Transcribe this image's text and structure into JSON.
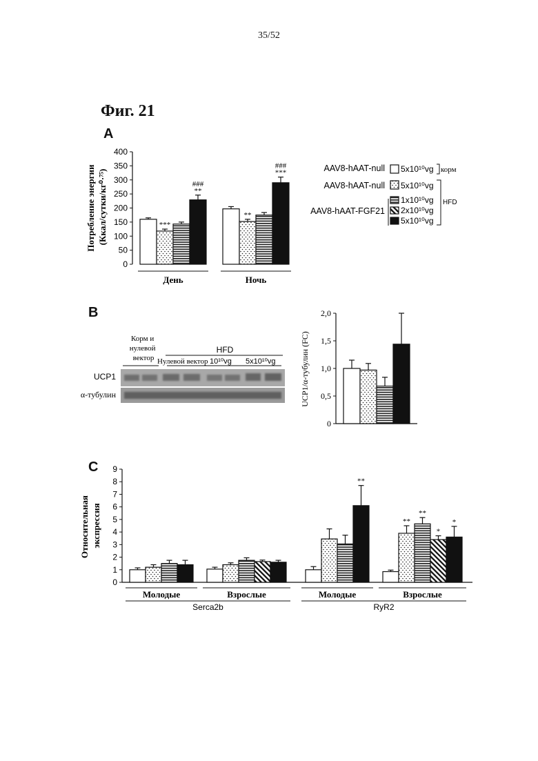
{
  "page_number": "35/52",
  "figure_title": "Фиг. 21",
  "legend": {
    "rows": [
      {
        "group_label": "AAV8-hAAT-null",
        "dose": "5x10¹⁰vg",
        "pattern": "white"
      },
      {
        "group_label": "AAV8-hAAT-null",
        "dose": "5x10¹⁰vg",
        "pattern": "dots"
      },
      {
        "group_label": "",
        "dose": "1x10¹⁰vg",
        "pattern": "hlines"
      },
      {
        "group_label": "AAV8-hAAT-FGF21",
        "dose": "2x10¹⁰vg",
        "pattern": "diag"
      },
      {
        "group_label": "",
        "dose": "5x10¹⁰vg",
        "pattern": "black"
      }
    ],
    "bracket_chow": "корм",
    "bracket_hfd": "HFD"
  },
  "blot": {
    "header_chow": "Корм и нулевой вектор",
    "header_chow_lines": [
      "Корм и",
      "нулевой",
      "вектор"
    ],
    "header_hfd": "HFD",
    "lane_null": "Нулевой вектор",
    "lane_1e10": "10¹⁰vg",
    "lane_5e10": "5x10¹⁰vg",
    "row_ucp1": "UCP1",
    "row_tubulin": "α-тубулин"
  },
  "chart_data": [
    {
      "panel": "A",
      "type": "bar",
      "ylabel": "Потребление энергии (Ккал/сутки/кг⁰·⁷⁵)",
      "ylabel_lines": [
        "Потребление энергии",
        "(Ккал/сутки/кг⁰·⁷⁵)"
      ],
      "ylim": [
        0,
        400
      ],
      "yticks": [
        "0",
        "50",
        "100",
        "150",
        "200",
        "250",
        "300",
        "350",
        "400"
      ],
      "categories": [
        "День",
        "Ночь"
      ],
      "series": [
        {
          "values": [
            160,
            197
          ],
          "errors": [
            5,
            8
          ]
        },
        {
          "values": [
            118,
            152
          ],
          "errors": [
            7,
            8
          ]
        },
        {
          "values": [
            143,
            175
          ],
          "errors": [
            7,
            9
          ]
        },
        {
          "values": [
            229,
            290
          ],
          "errors": [
            17,
            20
          ]
        }
      ],
      "series_patterns": [
        "white",
        "dots",
        "hlines",
        "black"
      ],
      "annotations": [
        {
          "category": 0,
          "series": 1,
          "lines": [
            "***"
          ]
        },
        {
          "category": 0,
          "series": 3,
          "lines": [
            "###",
            "**"
          ]
        },
        {
          "category": 1,
          "series": 1,
          "lines": [
            "**"
          ]
        },
        {
          "category": 1,
          "series": 3,
          "lines": [
            "###",
            "***"
          ]
        }
      ]
    },
    {
      "panel": "B",
      "type": "bar",
      "ylabel": "UCP1/α-тубулин (FC)",
      "ylim": [
        0,
        2
      ],
      "yticks": [
        "0",
        "0,5",
        "1,0",
        "1,5",
        "2,0"
      ],
      "values": [
        1.0,
        0.97,
        0.68,
        1.44
      ],
      "errors": [
        0.15,
        0.12,
        0.16,
        0.56
      ],
      "series_patterns": [
        "white",
        "dots",
        "hlines",
        "black"
      ]
    },
    {
      "panel": "C",
      "type": "bar",
      "ylabel": "Относительная экспрессия",
      "ylabel_lines": [
        "Относительная",
        "экспрессия"
      ],
      "ylim": [
        0,
        9
      ],
      "yticks": [
        "0",
        "1",
        "2",
        "3",
        "4",
        "5",
        "6",
        "7",
        "8",
        "9"
      ],
      "groups": [
        {
          "label": "Молодые",
          "gene": "Serca2b",
          "patterns": [
            "white",
            "dots",
            "hlines",
            "black"
          ],
          "values": [
            1.0,
            1.2,
            1.5,
            1.4
          ],
          "errors": [
            0.15,
            0.2,
            0.25,
            0.35
          ],
          "stars": [
            "",
            "",
            "",
            ""
          ]
        },
        {
          "label": "Взрослые",
          "gene": "Serca2b",
          "patterns": [
            "white",
            "dots",
            "hlines",
            "diag",
            "black"
          ],
          "values": [
            1.05,
            1.4,
            1.75,
            1.65,
            1.6
          ],
          "errors": [
            0.15,
            0.15,
            0.2,
            0.12,
            0.15
          ],
          "stars": [
            "",
            "",
            "",
            "",
            ""
          ]
        },
        {
          "label": "Молодые",
          "gene": "RyR2",
          "patterns": [
            "white",
            "dots",
            "hlines",
            "black"
          ],
          "values": [
            1.0,
            3.45,
            3.05,
            6.1
          ],
          "errors": [
            0.25,
            0.8,
            0.7,
            1.6
          ],
          "stars": [
            "",
            "",
            "",
            "**"
          ]
        },
        {
          "label": "Взрослые",
          "gene": "RyR2",
          "patterns": [
            "white",
            "dots",
            "hlines",
            "diag",
            "black"
          ],
          "values": [
            0.85,
            3.9,
            4.65,
            3.4,
            3.6
          ],
          "errors": [
            0.12,
            0.6,
            0.5,
            0.3,
            0.85
          ],
          "stars": [
            "",
            "**",
            "**",
            "*",
            "*"
          ]
        }
      ],
      "genes": [
        "Serca2b",
        "RyR2"
      ]
    }
  ]
}
